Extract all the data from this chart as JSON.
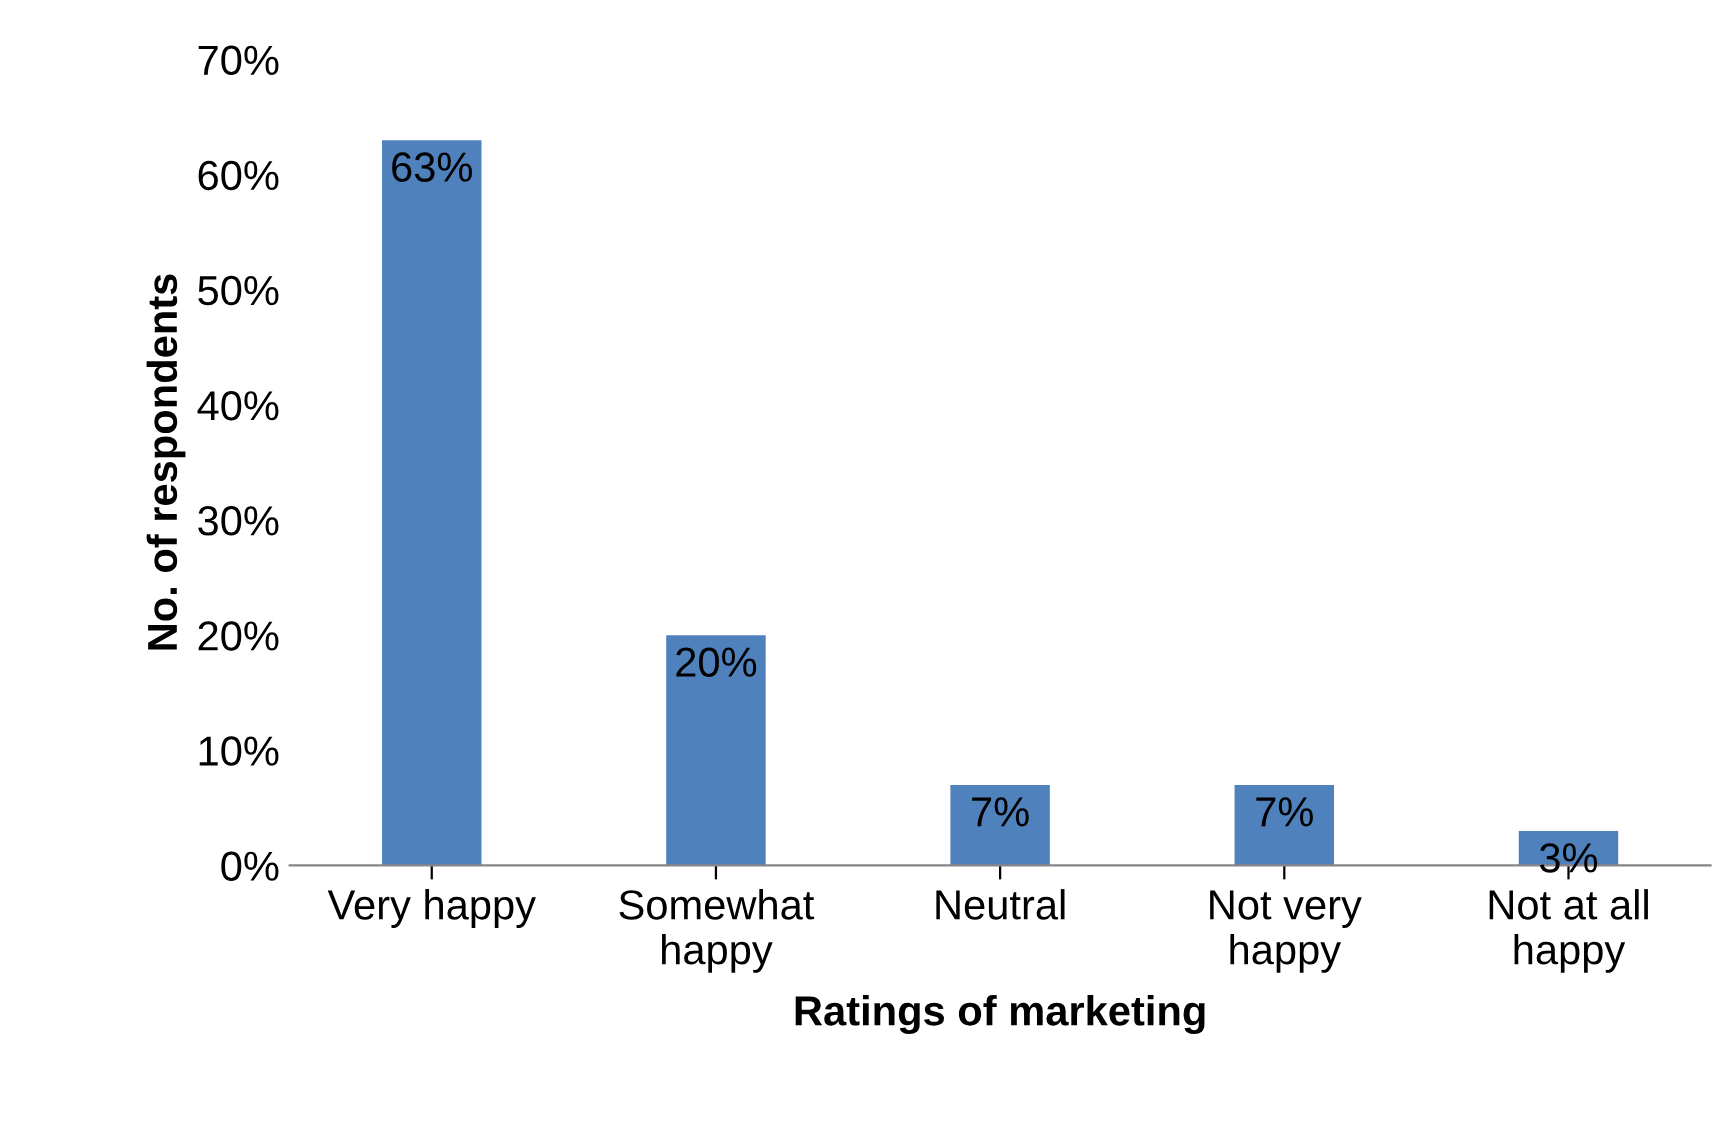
{
  "chart_data": {
    "type": "bar",
    "categories": [
      "Very happy",
      "Somewhat happy",
      "Neutral",
      "Not very happy",
      "Not at all happy"
    ],
    "values": [
      63,
      20,
      7,
      7,
      3
    ],
    "value_labels": [
      "63%",
      "20%",
      "7%",
      "7%",
      "3%"
    ],
    "color": "#4f81bd",
    "xlabel": "Ratings of marketing",
    "ylabel": "No. of respondents",
    "ylim": [
      0,
      70
    ],
    "yticks": [
      {
        "value": 0,
        "label": "0%"
      },
      {
        "value": 10,
        "label": "10%"
      },
      {
        "value": 20,
        "label": "20%"
      },
      {
        "value": 30,
        "label": "30%"
      },
      {
        "value": 40,
        "label": "40%"
      },
      {
        "value": 50,
        "label": "50%"
      },
      {
        "value": 60,
        "label": "60%"
      },
      {
        "value": 70,
        "label": "70%"
      }
    ],
    "grid": false,
    "legend": false
  }
}
